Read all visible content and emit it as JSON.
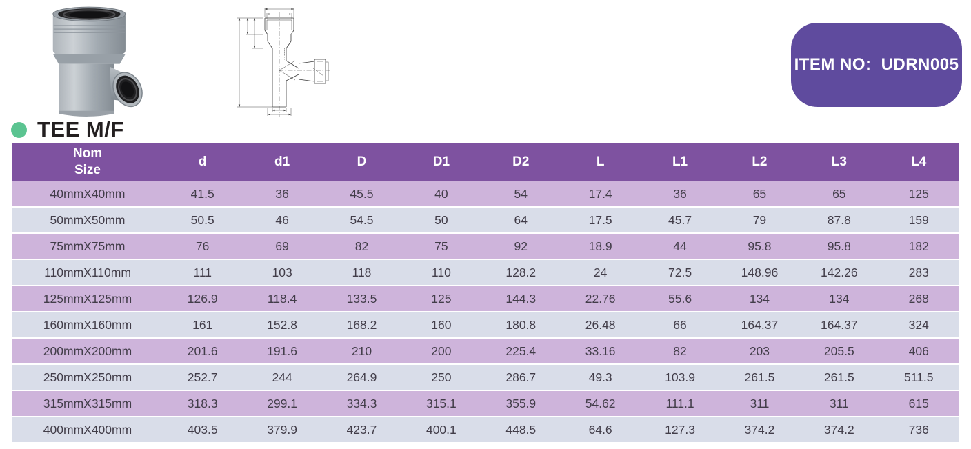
{
  "item_badge": {
    "label": "ITEM NO:",
    "value": "UDRN005"
  },
  "product": {
    "title": "TEE M/F",
    "photo": "grey-pvc-tee-mf-fitting-photo",
    "drawing": "tee-mf-dimension-line-drawing"
  },
  "colors": {
    "badge_purple": "#5F4B9E",
    "header_purple": "#7E52A0",
    "row_odd_lavender": "#CEB4DB",
    "row_even_bluegrey": "#D9DDE9",
    "bullet_green": "#5BC491",
    "title_ink": "#231F20"
  },
  "table": {
    "header": {
      "nom_size_line1": "Nom",
      "nom_size_line2": "Size",
      "dim_columns": [
        "d",
        "d1",
        "D",
        "D1",
        "D2",
        "L",
        "L1",
        "L2",
        "L3",
        "L4"
      ]
    },
    "rows": [
      {
        "size": "40mmX40mm",
        "values": [
          "41.5",
          "36",
          "45.5",
          "40",
          "54",
          "17.4",
          "36",
          "65",
          "65",
          "125"
        ]
      },
      {
        "size": "50mmX50mm",
        "values": [
          "50.5",
          "46",
          "54.5",
          "50",
          "64",
          "17.5",
          "45.7",
          "79",
          "87.8",
          "159"
        ]
      },
      {
        "size": "75mmX75mm",
        "values": [
          "76",
          "69",
          "82",
          "75",
          "92",
          "18.9",
          "44",
          "95.8",
          "95.8",
          "182"
        ]
      },
      {
        "size": "110mmX110mm",
        "values": [
          "111",
          "103",
          "118",
          "110",
          "128.2",
          "24",
          "72.5",
          "148.96",
          "142.26",
          "283"
        ]
      },
      {
        "size": "125mmX125mm",
        "values": [
          "126.9",
          "118.4",
          "133.5",
          "125",
          "144.3",
          "22.76",
          "55.6",
          "134",
          "134",
          "268"
        ]
      },
      {
        "size": "160mmX160mm",
        "values": [
          "161",
          "152.8",
          "168.2",
          "160",
          "180.8",
          "26.48",
          "66",
          "164.37",
          "164.37",
          "324"
        ]
      },
      {
        "size": "200mmX200mm",
        "values": [
          "201.6",
          "191.6",
          "210",
          "200",
          "225.4",
          "33.16",
          "82",
          "203",
          "205.5",
          "406"
        ]
      },
      {
        "size": "250mmX250mm",
        "values": [
          "252.7",
          "244",
          "264.9",
          "250",
          "286.7",
          "49.3",
          "103.9",
          "261.5",
          "261.5",
          "511.5"
        ]
      },
      {
        "size": "315mmX315mm",
        "values": [
          "318.3",
          "299.1",
          "334.3",
          "315.1",
          "355.9",
          "54.62",
          "111.1",
          "311",
          "311",
          "615"
        ]
      },
      {
        "size": "400mmX400mm",
        "values": [
          "403.5",
          "379.9",
          "423.7",
          "400.1",
          "448.5",
          "64.6",
          "127.3",
          "374.2",
          "374.2",
          "736"
        ]
      }
    ]
  }
}
